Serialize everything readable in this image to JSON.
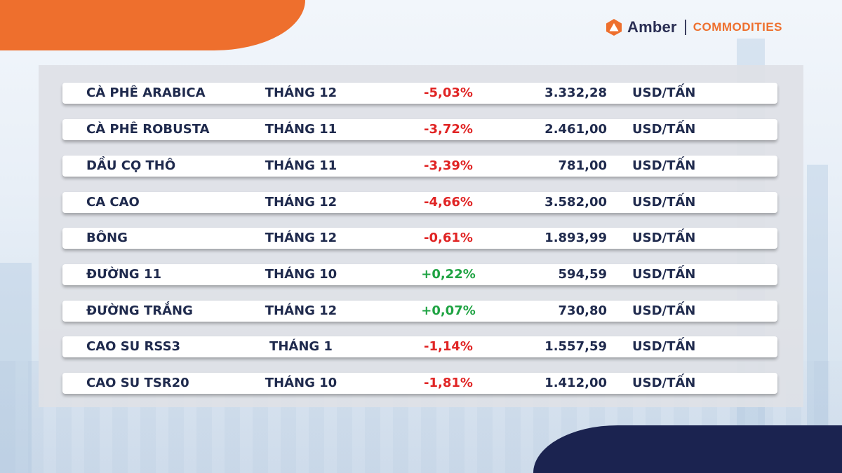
{
  "brand": {
    "name": "Amber",
    "subtitle": "COMMODITIES",
    "colors": {
      "orange": "#ee6f2d",
      "navy": "#1b2350"
    }
  },
  "rows": [
    {
      "name": "CÀ PHÊ ARABICA",
      "month": "THÁNG 12",
      "change": "-5,03%",
      "price": "3.332,28",
      "unit": "USD/TẤN"
    },
    {
      "name": "CÀ PHÊ ROBUSTA",
      "month": "THÁNG 11",
      "change": "-3,72%",
      "price": "2.461,00",
      "unit": "USD/TẤN"
    },
    {
      "name": "DẦU CỌ THÔ",
      "month": "THÁNG 11",
      "change": "-3,39%",
      "price": "781,00",
      "unit": "USD/TẤN"
    },
    {
      "name": "CA CAO",
      "month": "THÁNG 12",
      "change": "-4,66%",
      "price": "3.582,00",
      "unit": "USD/TẤN"
    },
    {
      "name": "BÔNG",
      "month": "THÁNG 12",
      "change": "-0,61%",
      "price": "1.893,99",
      "unit": "USD/TẤN"
    },
    {
      "name": "ĐƯỜNG 11",
      "month": "THÁNG 10",
      "change": "+0,22%",
      "price": "594,59",
      "unit": "USD/TẤN"
    },
    {
      "name": "ĐƯỜNG TRẮNG",
      "month": "THÁNG 12",
      "change": "+0,07%",
      "price": "730,80",
      "unit": "USD/TẤN"
    },
    {
      "name": "CAO SU RSS3",
      "month": "THÁNG 1",
      "change": "-1,14%",
      "price": "1.557,59",
      "unit": "USD/TẤN"
    },
    {
      "name": "CAO SU TSR20",
      "month": "THÁNG 10",
      "change": "-1,81%",
      "price": "1.412,00",
      "unit": "USD/TẤN"
    }
  ]
}
